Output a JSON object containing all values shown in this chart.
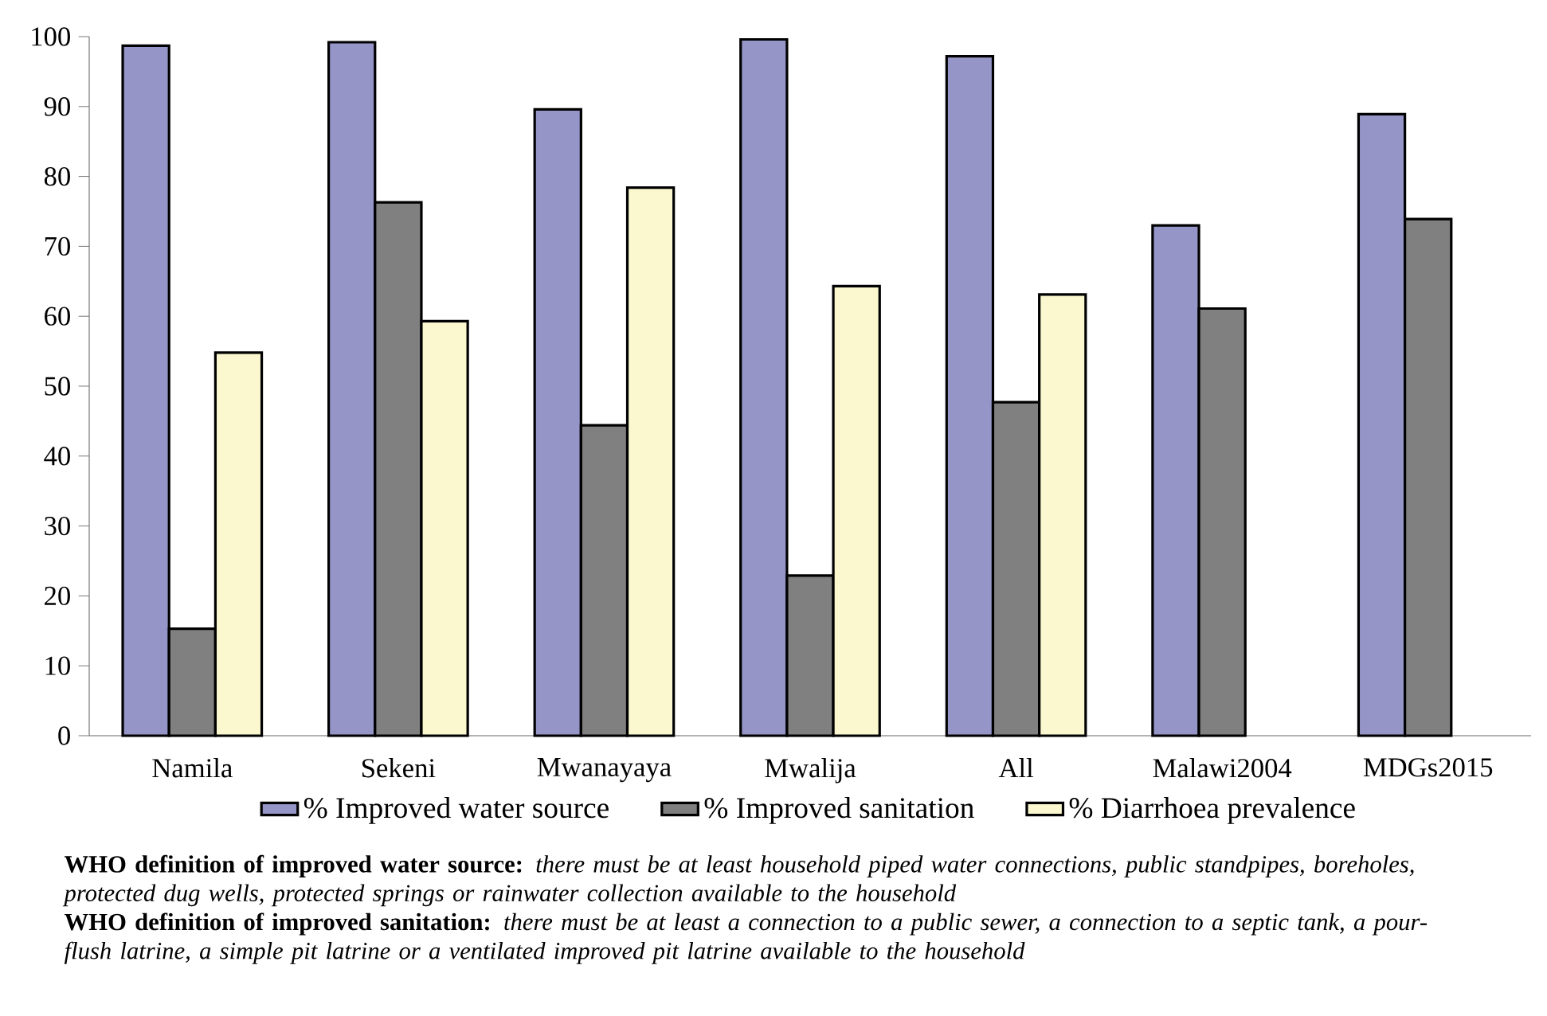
{
  "chart_data": {
    "type": "bar",
    "categories": [
      "Namila",
      "Sekeni",
      "Mwanayaya",
      "Mwalija",
      "All",
      "Malawi2004",
      "MDGs2015"
    ],
    "series": [
      {
        "name": "% Improved water source",
        "color": "#9595c8",
        "values": [
          98.7,
          99.2,
          89.6,
          99.6,
          97.2,
          73.0,
          88.9
        ]
      },
      {
        "name": "% Improved sanitation",
        "color": "#808080",
        "values": [
          15.3,
          76.3,
          44.4,
          22.9,
          47.7,
          61.1,
          73.9
        ]
      },
      {
        "name": "% Diarrhoea prevalence",
        "color": "#fbf8cf",
        "values": [
          54.8,
          59.3,
          78.4,
          64.3,
          63.1,
          null,
          null
        ]
      }
    ],
    "ylim": [
      0,
      100
    ],
    "yticks": [
      0,
      10,
      20,
      30,
      40,
      50,
      60,
      70,
      80,
      90,
      100
    ],
    "legend": "bottom",
    "annotations": [
      "**WHO definition of improved water source:** *there must be at least household piped water connections, public standpipes, boreholes, protected dug wells, protected springs or rainwater collection available to the household*",
      "**WHO definition of improved sanitation:** *there must be at least a connection to a public sewer, a connection to a septic tank, a pour-flush latrine, a simple pit latrine or a ventilated improved pit latrine available to the household*"
    ]
  }
}
